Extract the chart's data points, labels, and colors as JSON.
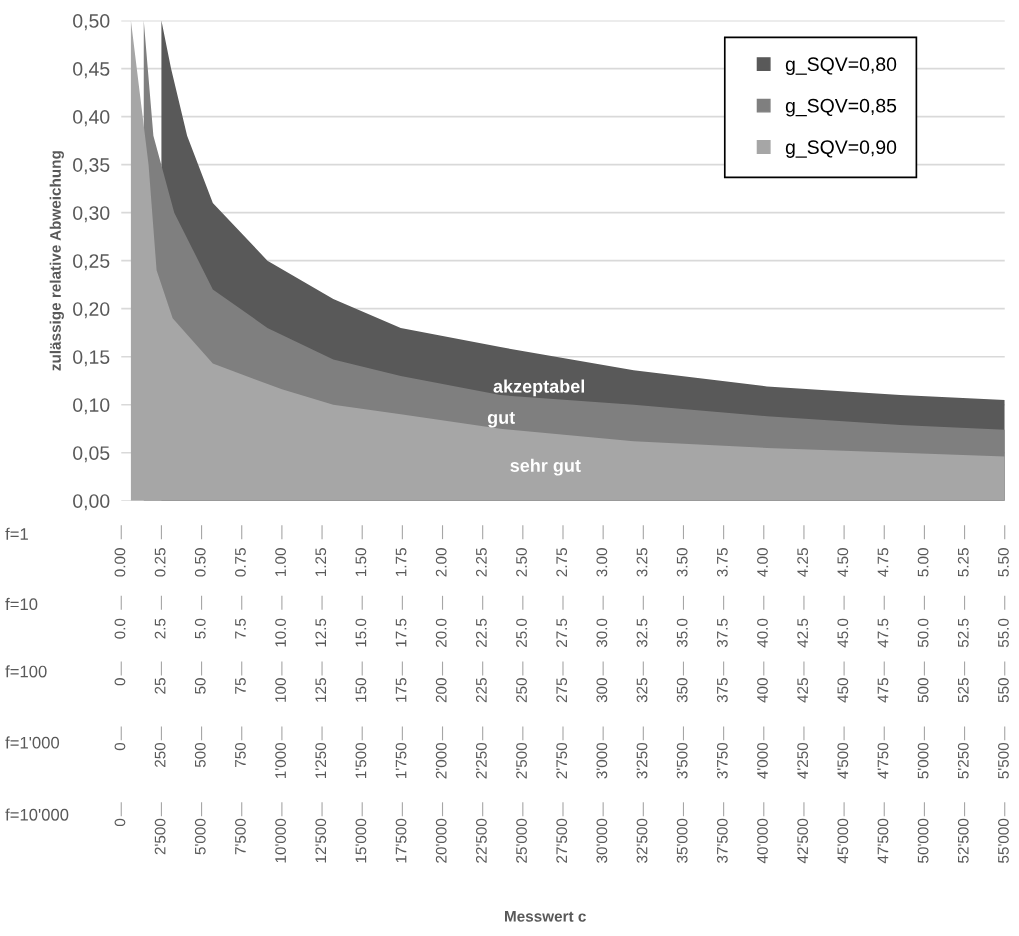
{
  "chart_data": {
    "type": "area",
    "ylabel": "zulässige relative Abweichung",
    "series": [
      {
        "name": "g_SQV=0,80",
        "color": "#595959",
        "x": [
          0.25,
          0.31,
          0.41,
          0.57,
          0.91,
          1.32,
          1.74,
          2.36,
          3.19,
          4.02,
          4.85,
          5.5
        ],
        "values": [
          0.5,
          0.45,
          0.38,
          0.31,
          0.25,
          0.21,
          0.18,
          0.16,
          0.136,
          0.119,
          0.11,
          0.105
        ]
      },
      {
        "name": "g_SQV=0,85",
        "color": "#7f7f7f",
        "x": [
          0.14,
          0.2,
          0.33,
          0.57,
          0.91,
          1.32,
          1.74,
          2.36,
          3.19,
          4.02,
          4.85,
          5.5
        ],
        "values": [
          0.5,
          0.38,
          0.3,
          0.22,
          0.18,
          0.147,
          0.13,
          0.11,
          0.1,
          0.088,
          0.079,
          0.074
        ]
      },
      {
        "name": "g_SQV=0,90",
        "color": "#a6a6a6",
        "x": [
          0.06,
          0.17,
          0.22,
          0.32,
          0.57,
          1.0,
          1.32,
          1.74,
          2.36,
          3.19,
          4.02,
          4.85,
          5.5
        ],
        "values": [
          0.5,
          0.35,
          0.24,
          0.19,
          0.143,
          0.116,
          0.1,
          0.09,
          0.075,
          0.062,
          0.055,
          0.05,
          0.046
        ]
      }
    ],
    "ylim": [
      0,
      0.5
    ],
    "yticks": [
      {
        "value": 0,
        "label": "0,00"
      },
      {
        "value": 0.05,
        "label": "0,05"
      },
      {
        "value": 0.1,
        "label": "0,10"
      },
      {
        "value": 0.15,
        "label": "0,15"
      },
      {
        "value": 0.2,
        "label": "0,20"
      },
      {
        "value": 0.25,
        "label": "0,25"
      },
      {
        "value": 0.3,
        "label": "0,30"
      },
      {
        "value": 0.35,
        "label": "0,35"
      },
      {
        "value": 0.4,
        "label": "0,40"
      },
      {
        "value": 0.45,
        "label": "0,45"
      },
      {
        "value": 0.5,
        "label": "0,50"
      }
    ],
    "xlim": [
      0,
      5.5
    ],
    "xticks": [
      {
        "value": 0,
        "label": "0.00"
      },
      {
        "value": 0.25,
        "label": "0.25"
      },
      {
        "value": 0.5,
        "label": "0.50"
      },
      {
        "value": 0.75,
        "label": "0.75"
      },
      {
        "value": 1,
        "label": "1.00"
      },
      {
        "value": 1.25,
        "label": "1.25"
      },
      {
        "value": 1.5,
        "label": "1.50"
      },
      {
        "value": 1.75,
        "label": "1.75"
      },
      {
        "value": 2,
        "label": "2.00"
      },
      {
        "value": 2.25,
        "label": "2.25"
      },
      {
        "value": 2.5,
        "label": "2.50"
      },
      {
        "value": 2.75,
        "label": "2.75"
      },
      {
        "value": 3,
        "label": "3.00"
      },
      {
        "value": 3.25,
        "label": "3.25"
      },
      {
        "value": 3.5,
        "label": "3.50"
      },
      {
        "value": 3.75,
        "label": "3.75"
      },
      {
        "value": 4,
        "label": "4.00"
      },
      {
        "value": 4.25,
        "label": "4.25"
      },
      {
        "value": 4.5,
        "label": "4.50"
      },
      {
        "value": 4.75,
        "label": "4.75"
      },
      {
        "value": 5,
        "label": "5.00"
      },
      {
        "value": 5.25,
        "label": "5.25"
      },
      {
        "value": 5.5,
        "label": "5.50"
      }
    ],
    "x2lim": [
      0,
      55
    ],
    "x2ticks": [
      {
        "value": 0,
        "label": "0.0"
      },
      {
        "value": 2.5,
        "label": "2.5"
      },
      {
        "value": 5,
        "label": "5.0"
      },
      {
        "value": 7.5,
        "label": "7.5"
      },
      {
        "value": 10,
        "label": "10.0"
      },
      {
        "value": 12.5,
        "label": "12.5"
      },
      {
        "value": 15,
        "label": "15.0"
      },
      {
        "value": 17.5,
        "label": "17.5"
      },
      {
        "value": 20,
        "label": "20.0"
      },
      {
        "value": 22.5,
        "label": "22.5"
      },
      {
        "value": 25,
        "label": "25.0"
      },
      {
        "value": 27.5,
        "label": "27.5"
      },
      {
        "value": 30,
        "label": "30.0"
      },
      {
        "value": 32.5,
        "label": "32.5"
      },
      {
        "value": 35,
        "label": "35.0"
      },
      {
        "value": 37.5,
        "label": "37.5"
      },
      {
        "value": 40,
        "label": "40.0"
      },
      {
        "value": 42.5,
        "label": "42.5"
      },
      {
        "value": 45,
        "label": "45.0"
      },
      {
        "value": 47.5,
        "label": "47.5"
      },
      {
        "value": 50,
        "label": "50.0"
      },
      {
        "value": 52.5,
        "label": "52.5"
      },
      {
        "value": 55,
        "label": "55.0"
      }
    ],
    "annotations": [
      "f=1",
      "f=10",
      "f=100",
      "f=1'000",
      "f=10'000",
      "akzeptabel",
      "gut",
      "sehr gut",
      "Messwert c",
      "0",
      "25",
      "50",
      "75",
      "100",
      "125",
      "150",
      "175",
      "200",
      "225",
      "250",
      "275",
      "300",
      "325",
      "350",
      "375",
      "400",
      "425",
      "450",
      "475",
      "500",
      "525",
      "550",
      "0",
      "250",
      "500",
      "750",
      "1'000",
      "1'250",
      "1'500",
      "1'750",
      "2'000",
      "2'250",
      "2'500",
      "2'750",
      "3'000",
      "3'250",
      "3'500",
      "3'750",
      "4'000",
      "4'250",
      "4'500",
      "4'750",
      "5'000",
      "5'250",
      "5'500",
      "0",
      "2'500",
      "5'000",
      "7'500",
      "10'000",
      "12'500",
      "15'000",
      "17'500",
      "20'000",
      "22'500",
      "25'000",
      "27'500",
      "30'000",
      "32'500",
      "35'000",
      "37'500",
      "40'000",
      "42'500",
      "45'000",
      "47'500",
      "50'000",
      "52'500",
      "55'000"
    ],
    "grid": "y",
    "legend": "top right"
  }
}
